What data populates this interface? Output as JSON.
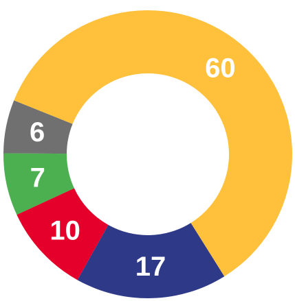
{
  "chart_data": {
    "type": "donut",
    "values": [
      17,
      10,
      7,
      6,
      60
    ],
    "colors": [
      "#2e3a87",
      "#e4002b",
      "#4caf50",
      "#707070",
      "#ffc13b"
    ]
  }
}
